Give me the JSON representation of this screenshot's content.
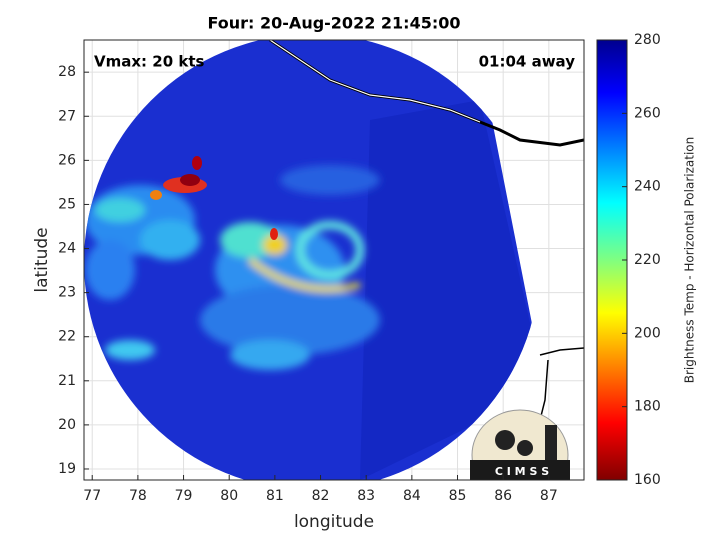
{
  "chart_data": {
    "type": "map",
    "title": "Four: 20-Aug-2022 21:45:00",
    "annotations": [
      "Vmax: 20 kts",
      "01:04 away"
    ],
    "x_label": "longitude",
    "y_label": "latitude",
    "xlim": [
      76.82,
      87.77
    ],
    "xticks": [
      77,
      78,
      79,
      80,
      81,
      82,
      83,
      84,
      85,
      86,
      87
    ],
    "ylim": [
      18.75,
      28.73
    ],
    "yticks": [
      19,
      20,
      21,
      22,
      23,
      24,
      25,
      26,
      27,
      28
    ],
    "grid": true,
    "colorbar": {
      "label": "Brightness Temp - Horizontal Polarization",
      "lim": [
        160,
        280
      ],
      "ticks": [
        160,
        180,
        200,
        220,
        240,
        260,
        280
      ]
    },
    "logo": "C I M S S"
  }
}
